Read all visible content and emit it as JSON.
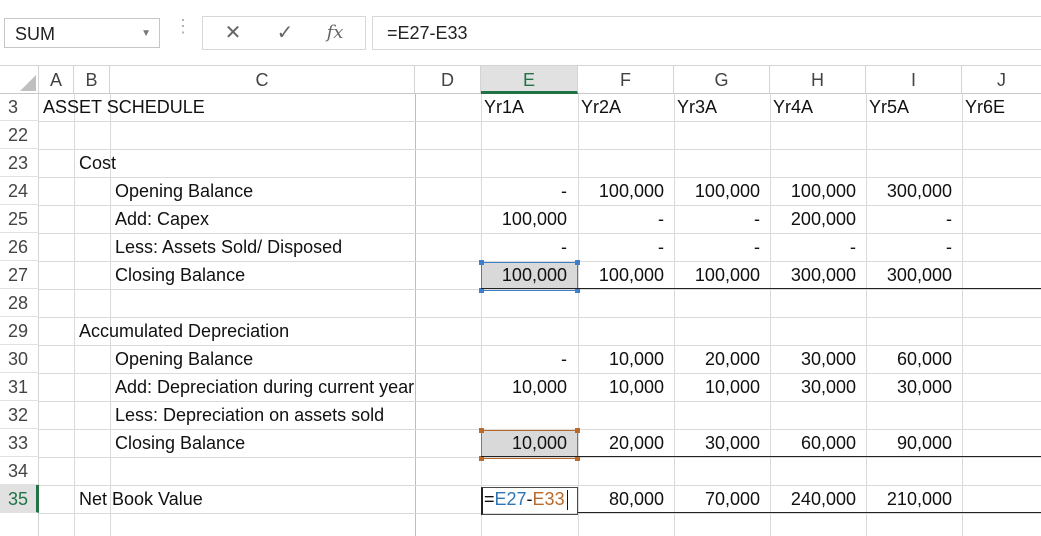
{
  "formula_bar": {
    "name_box": "SUM",
    "cancel_glyph": "✕",
    "enter_glyph": "✓",
    "fx_label": "fx",
    "formula": "=E27-E33"
  },
  "columns": [
    "A",
    "B",
    "C",
    "D",
    "E",
    "F",
    "G",
    "H",
    "I",
    "J"
  ],
  "selected_column": "E",
  "row_numbers": [
    "3",
    "22",
    "23",
    "24",
    "25",
    "26",
    "27",
    "28",
    "29",
    "30",
    "31",
    "32",
    "33",
    "34",
    "35"
  ],
  "selected_row": "35",
  "header_row": {
    "title": "ASSET SCHEDULE",
    "years": [
      "Yr1A",
      "Yr2A",
      "Yr3A",
      "Yr4A",
      "Yr5A",
      "Yr6E"
    ]
  },
  "rows": {
    "r23": {
      "label": "Cost"
    },
    "r24": {
      "label": "Opening Balance",
      "values": [
        "-",
        "100,000",
        "100,000",
        "100,000",
        "300,000"
      ]
    },
    "r25": {
      "label": "Add: Capex",
      "values": [
        "100,000",
        "-",
        "-",
        "200,000",
        "-"
      ]
    },
    "r26": {
      "label": "Less: Assets Sold/ Disposed",
      "values": [
        "-",
        "-",
        "-",
        "-",
        "-"
      ]
    },
    "r27": {
      "label": "Closing Balance",
      "values": [
        "100,000",
        "100,000",
        "100,000",
        "300,000",
        "300,000"
      ]
    },
    "r29": {
      "label": "Accumulated Depreciation"
    },
    "r30": {
      "label": "Opening Balance",
      "values": [
        "-",
        "10,000",
        "20,000",
        "30,000",
        "60,000"
      ]
    },
    "r31": {
      "label": "Add: Depreciation during current year",
      "values": [
        "10,000",
        "10,000",
        "10,000",
        "30,000",
        "30,000"
      ]
    },
    "r32": {
      "label": "Less: Depreciation on assets sold"
    },
    "r33": {
      "label": "Closing Balance",
      "values": [
        "10,000",
        "20,000",
        "30,000",
        "60,000",
        "90,000"
      ]
    },
    "r35": {
      "label": "Net Book Value",
      "values": [
        "",
        "80,000",
        "70,000",
        "240,000",
        "210,000"
      ],
      "editing": {
        "eq": "=",
        "ref1": "E27",
        "op": "-",
        "ref2": "E33"
      }
    }
  },
  "colors": {
    "excel_green": "#217346",
    "ref_blue": "#2e75b6",
    "ref_orange": "#b86a2c"
  },
  "icons": [
    "corner-select-all-icon",
    "cancel-icon",
    "enter-icon",
    "insert-function-icon",
    "dropdown-caret-icon"
  ]
}
